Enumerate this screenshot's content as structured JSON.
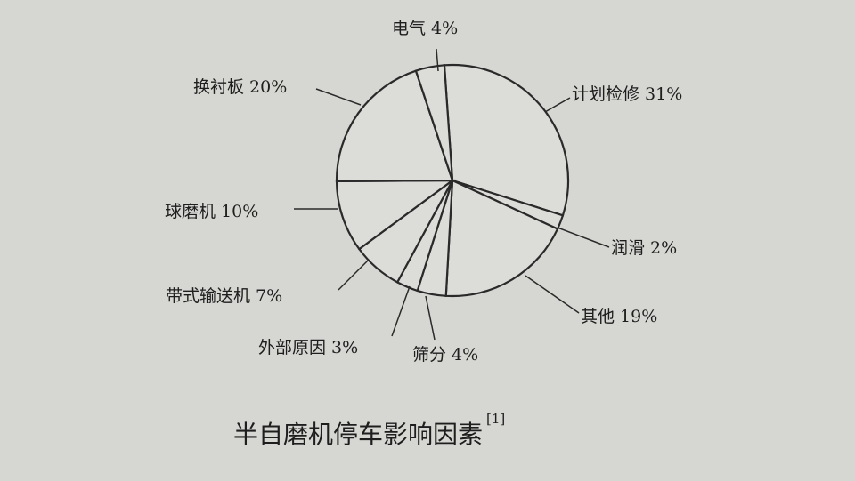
{
  "chart_data": {
    "type": "pie",
    "title": "半自磨机停车影响因素",
    "title_reference": "[1]",
    "categories": [
      "计划检修",
      "润滑",
      "其他",
      "筛分",
      "外部原因",
      "带式输送机",
      "球磨机",
      "换衬板",
      "电气"
    ],
    "values": [
      31,
      2,
      19,
      4,
      3,
      7,
      10,
      20,
      4
    ],
    "labels": [
      "计划检修 31%",
      "润滑 2%",
      "其他 19%",
      "筛分 4%",
      "外部原因 3%",
      "带式输送机 7%",
      "球磨机 10%",
      "换衬板 20%",
      "电气 4%"
    ],
    "unit": "%",
    "direction": "clockwise",
    "colors": {
      "background": "#d6d6d2",
      "fill": "#dcdcd8",
      "stroke": "#2a2a2a"
    }
  }
}
